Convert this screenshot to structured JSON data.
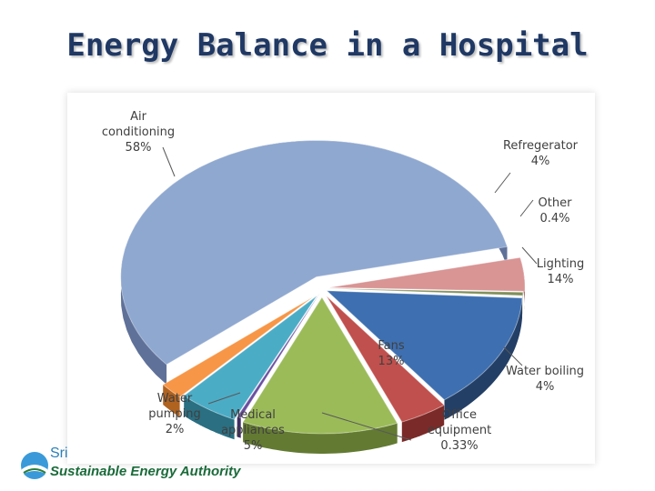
{
  "slide": {
    "title": "Energy Balance in a Hospital"
  },
  "footer": {
    "org_short": "Sri",
    "org_name": "Sustainable Energy Authority"
  },
  "chart_data": {
    "type": "pie",
    "title": "",
    "slices": [
      {
        "label": "Air conditioning",
        "value_label": "58%",
        "value": 58,
        "color": "#8fa8d0",
        "side": "#5f7199"
      },
      {
        "label": "Refregerator",
        "value_label": "4%",
        "value": 4,
        "color": "#d99494",
        "side": "#a86464"
      },
      {
        "label": "Other",
        "value_label": "0.4%",
        "value": 0.4,
        "color": "#7f8f5a",
        "side": "#5a6640"
      },
      {
        "label": "Lighting",
        "value_label": "14%",
        "value": 14,
        "color": "#3e6fb0",
        "side": "#243f66"
      },
      {
        "label": "Water boiling",
        "value_label": "4%",
        "value": 4,
        "color": "#c0504d",
        "side": "#7a2a28"
      },
      {
        "label": "Fans",
        "value_label": "13%",
        "value": 13,
        "color": "#9bbb59",
        "side": "#637a32"
      },
      {
        "label": "Office equipment",
        "value_label": "0.33%",
        "value": 0.33,
        "color": "#6a4ea0",
        "side": "#3f2d63"
      },
      {
        "label": "Medical appliances",
        "value_label": "5%",
        "value": 5,
        "color": "#4bacc6",
        "side": "#2a6f82"
      },
      {
        "label": "Water pumping",
        "value_label": "2%",
        "value": 2,
        "color": "#f79646",
        "side": "#b0621f"
      }
    ]
  }
}
